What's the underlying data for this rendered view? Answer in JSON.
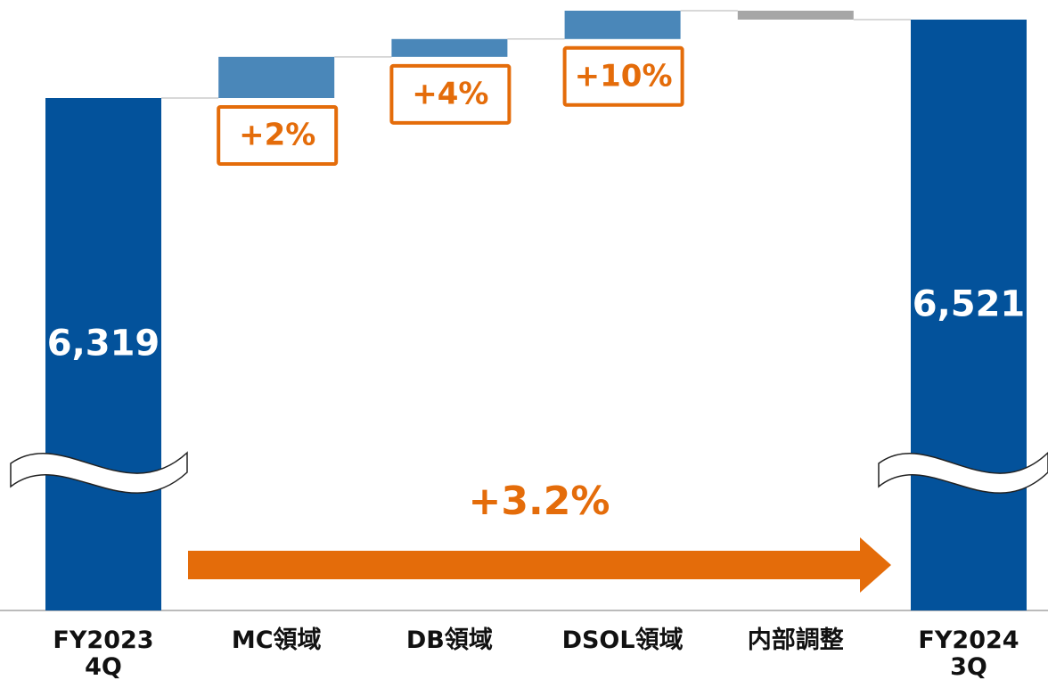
{
  "chart_data": {
    "type": "waterfall",
    "categories": [
      "FY2023\n4Q",
      "MC領域",
      "DB領域",
      "DSOL領域",
      "内部調整",
      "FY2024\n3Q"
    ],
    "values": [
      6319,
      106,
      46,
      73,
      -23,
      6521
    ],
    "value_labels": [
      "6,319",
      null,
      null,
      null,
      null,
      "6,521"
    ],
    "change_labels": [
      null,
      "+2%",
      "+4%",
      "+10%",
      null,
      null
    ],
    "total_change_label": "+3.2%",
    "colors": {
      "total": "#03529b",
      "increase": "#4a87b9",
      "decrease": "#a6a6a6",
      "annotation": "#e46c0a"
    }
  }
}
